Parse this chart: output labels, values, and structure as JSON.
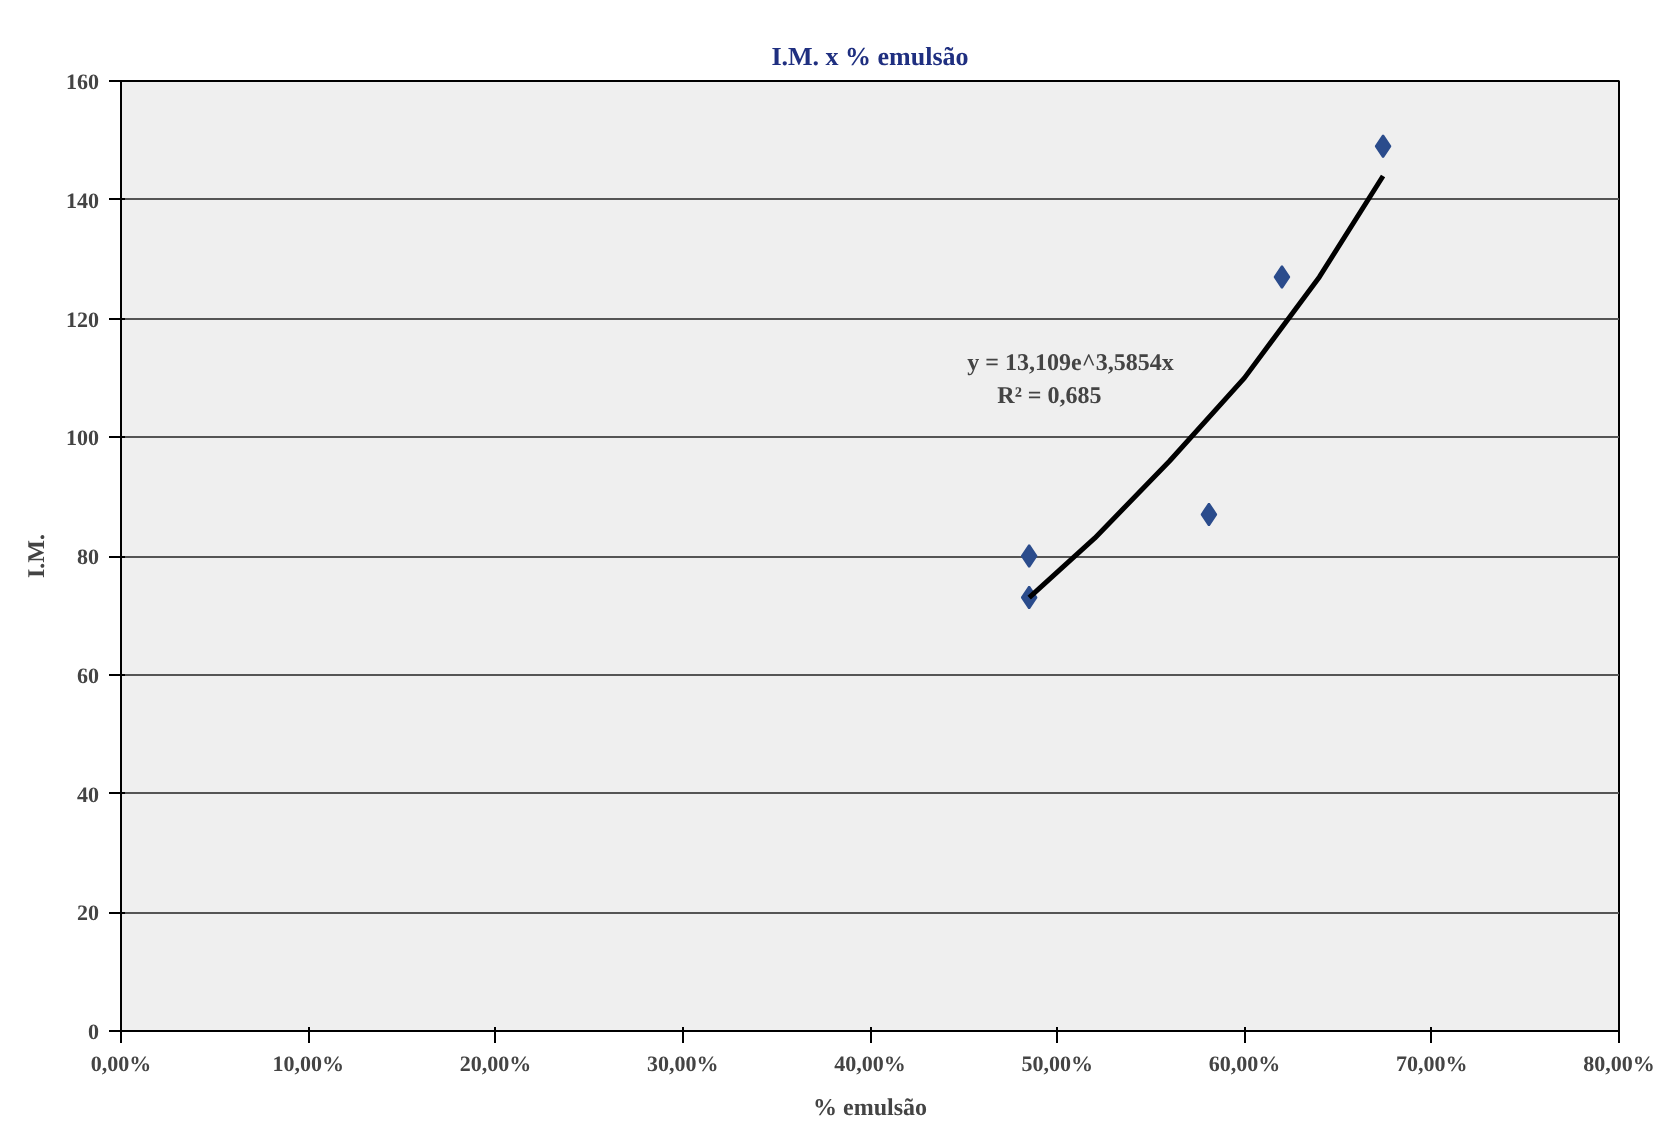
{
  "chart_data": {
    "type": "scatter",
    "title": "I.M. x % emulsão",
    "xlabel": "% emulsão",
    "ylabel": "I.M.",
    "xlim": [
      0,
      80
    ],
    "ylim": [
      0,
      160
    ],
    "xticks": [
      {
        "value": 0,
        "label": "0,00%"
      },
      {
        "value": 10,
        "label": "10,00%"
      },
      {
        "value": 20,
        "label": "20,00%"
      },
      {
        "value": 30,
        "label": "30,00%"
      },
      {
        "value": 40,
        "label": "40,00%"
      },
      {
        "value": 50,
        "label": "50,00%"
      },
      {
        "value": 60,
        "label": "60,00%"
      },
      {
        "value": 70,
        "label": "70,00%"
      },
      {
        "value": 80,
        "label": "80,00%"
      }
    ],
    "yticks": [
      0,
      20,
      40,
      60,
      80,
      100,
      120,
      140,
      160
    ],
    "grid": "y",
    "marker": "diamond",
    "legend": false,
    "series": [
      {
        "color": "#2b4c8c",
        "x": [
          48.5,
          48.5,
          58.1,
          62.0,
          67.4
        ],
        "values": [
          80,
          73,
          87,
          127,
          149
        ]
      },
      {
        "type": "line",
        "marker": "none",
        "color": "#000000",
        "x": [
          48.5,
          52,
          56,
          60,
          64,
          67.4
        ],
        "values": [
          73,
          83,
          96,
          110,
          127,
          144
        ]
      }
    ],
    "annotations": [
      "y = 13,109e^3,5854x",
      "R² = 0,685"
    ]
  }
}
